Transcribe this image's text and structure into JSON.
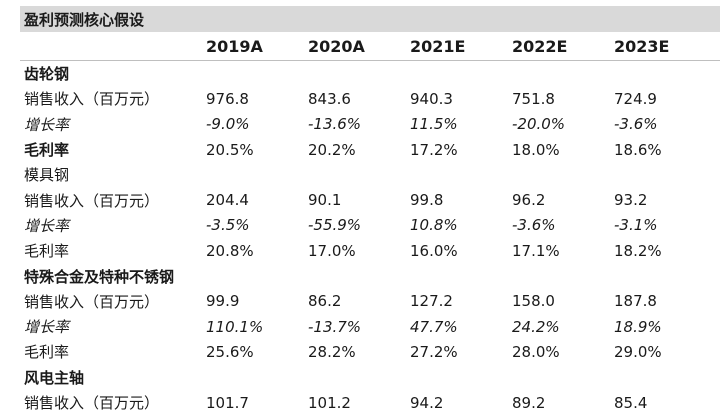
{
  "title": "盈利预测核心假设",
  "years": [
    "2019A",
    "2020A",
    "2021E",
    "2022E",
    "2023E"
  ],
  "rows": [
    {
      "label": "齿轮钢",
      "values": [
        "",
        "",
        "",
        "",
        ""
      ],
      "style": "section-bold"
    },
    {
      "label": "销售收入（百万元）",
      "values": [
        "976.8",
        "843.6",
        "940.3",
        "751.8",
        "724.9"
      ],
      "style": "normal"
    },
    {
      "label": "增长率",
      "values": [
        "-9.0%",
        "-13.6%",
        "11.5%",
        "-20.0%",
        "-3.6%"
      ],
      "style": "growth"
    },
    {
      "label": "毛利率",
      "values": [
        "20.5%",
        "20.2%",
        "17.2%",
        "18.0%",
        "18.6%"
      ],
      "style": "bold-label"
    },
    {
      "label": "模具钢",
      "values": [
        "",
        "",
        "",
        "",
        ""
      ],
      "style": "normal"
    },
    {
      "label": "销售收入（百万元）",
      "values": [
        "204.4",
        "90.1",
        "99.8",
        "96.2",
        "93.2"
      ],
      "style": "normal"
    },
    {
      "label": "增长率",
      "values": [
        "-3.5%",
        "-55.9%",
        "10.8%",
        "-3.6%",
        "-3.1%"
      ],
      "style": "growth"
    },
    {
      "label": "毛利率",
      "values": [
        "20.8%",
        "17.0%",
        "16.0%",
        "17.1%",
        "18.2%"
      ],
      "style": "normal"
    },
    {
      "label": "特殊合金及特种不锈钢",
      "values": [
        "",
        "",
        "",
        "",
        ""
      ],
      "style": "section-bold"
    },
    {
      "label": "销售收入（百万元）",
      "values": [
        "99.9",
        "86.2",
        "127.2",
        "158.0",
        "187.8"
      ],
      "style": "normal"
    },
    {
      "label": "增长率",
      "values": [
        "110.1%",
        "-13.7%",
        "47.7%",
        "24.2%",
        "18.9%"
      ],
      "style": "growth"
    },
    {
      "label": "毛利率",
      "values": [
        "25.6%",
        "28.2%",
        "27.2%",
        "28.0%",
        "29.0%"
      ],
      "style": "normal"
    },
    {
      "label": "风电主轴",
      "values": [
        "",
        "",
        "",
        "",
        ""
      ],
      "style": "section-bold"
    },
    {
      "label": "销售收入（百万元）",
      "values": [
        "101.7",
        "101.2",
        "94.2",
        "89.2",
        "85.4"
      ],
      "style": "normal"
    }
  ]
}
